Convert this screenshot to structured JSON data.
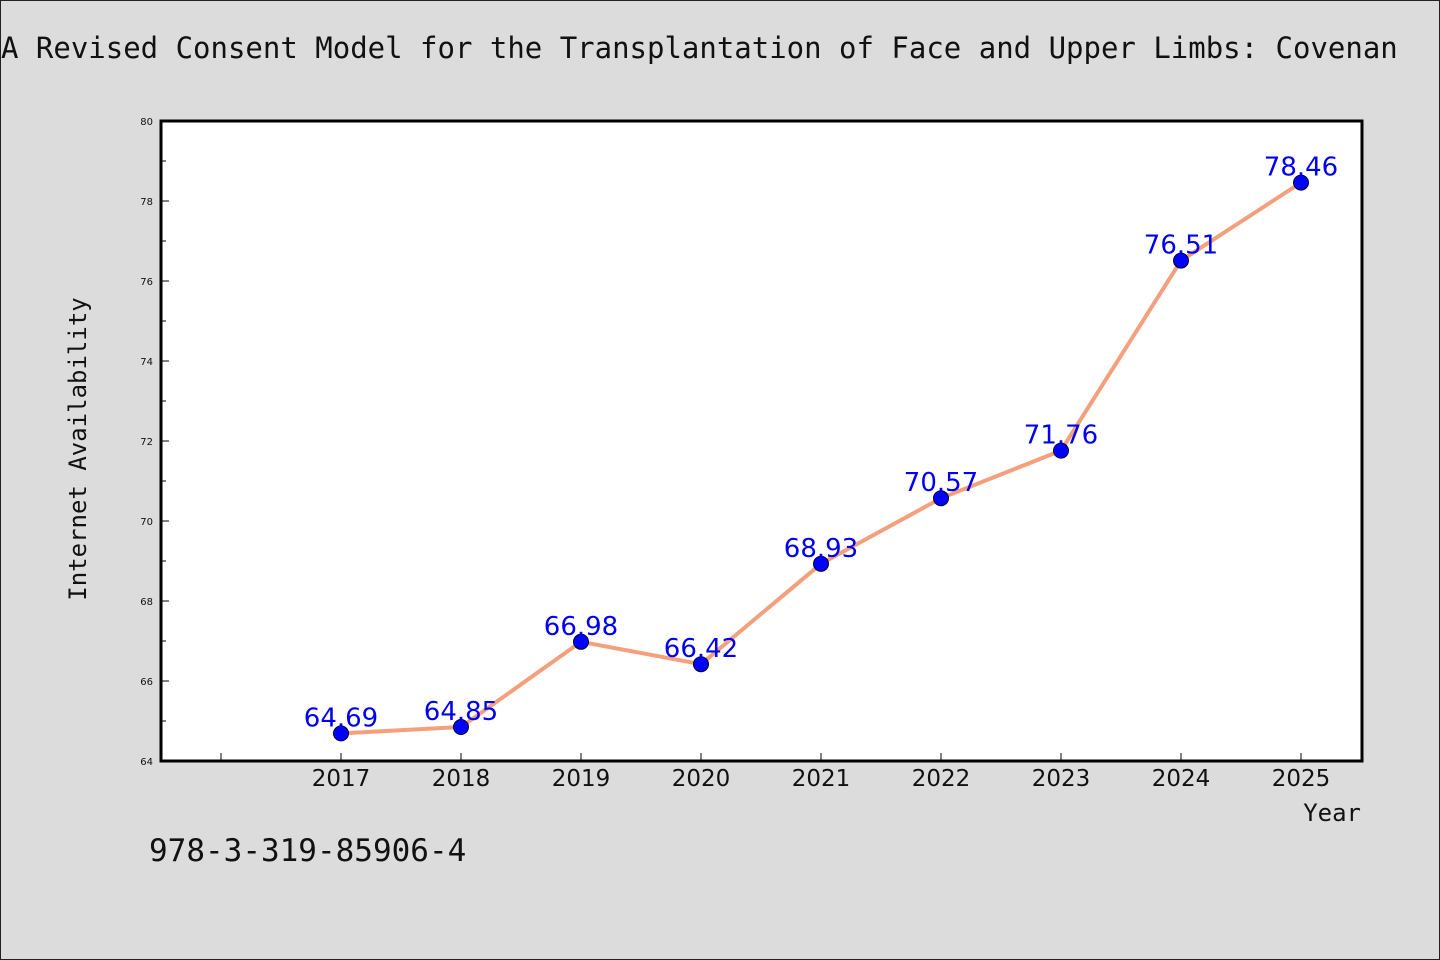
{
  "chart_data": {
    "type": "line",
    "title": "A Revised Consent Model for the Transplantation of Face and Upper Limbs: Covenan",
    "xlabel": "Year",
    "ylabel": "Internet Availability",
    "x": [
      "2017",
      "2018",
      "2019",
      "2020",
      "2021",
      "2022",
      "2023",
      "2024",
      "2025"
    ],
    "values": [
      64.69,
      64.85,
      66.98,
      66.42,
      68.93,
      70.57,
      71.76,
      76.51,
      78.46
    ],
    "data_labels": [
      "64.69",
      "64.85",
      "66.98",
      "66.42",
      "68.93",
      "70.57",
      "71.76",
      "76.51",
      "78.46"
    ],
    "ylim": [
      64,
      80
    ],
    "yticks": [
      "64",
      "66",
      "68",
      "70",
      "72",
      "74",
      "76",
      "78",
      "80"
    ],
    "grid": false,
    "line_color": "#f4a07c",
    "marker_color": "#0000ff",
    "label_color": "#0000ee"
  },
  "footer": {
    "isbn": "978-3-319-85906-4"
  }
}
